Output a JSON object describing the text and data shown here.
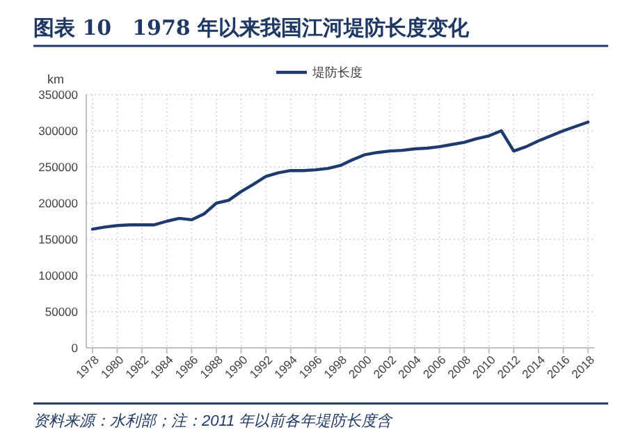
{
  "chart_data": {
    "type": "line",
    "title": "图表 10　1978 年以来我国江河堤防长度变化",
    "ylabel": "km",
    "x": [
      1978,
      1979,
      1980,
      1981,
      1982,
      1983,
      1984,
      1985,
      1986,
      1987,
      1988,
      1989,
      1990,
      1991,
      1992,
      1993,
      1994,
      1995,
      1996,
      1997,
      1998,
      1999,
      2000,
      2001,
      2002,
      2003,
      2004,
      2005,
      2006,
      2007,
      2008,
      2009,
      2010,
      2011,
      2012,
      2013,
      2014,
      2015,
      2016,
      2017,
      2018
    ],
    "series": [
      {
        "name": "堤防长度",
        "color": "#1f3a6e",
        "values": [
          164000,
          167000,
          169000,
          170000,
          170000,
          170000,
          175000,
          179000,
          177000,
          185000,
          200000,
          204000,
          216000,
          226000,
          237000,
          242000,
          245000,
          245000,
          246000,
          248000,
          252000,
          260000,
          267000,
          270000,
          272000,
          273000,
          275000,
          276000,
          278000,
          281000,
          284000,
          289000,
          293000,
          300000,
          272000,
          278000,
          286000,
          293000,
          300000,
          306000,
          312000
        ]
      }
    ],
    "xlim": [
      1977.5,
      2018.5
    ],
    "xticks": [
      1978,
      1980,
      1982,
      1984,
      1986,
      1988,
      1990,
      1992,
      1994,
      1996,
      1998,
      2000,
      2002,
      2004,
      2006,
      2008,
      2010,
      2012,
      2014,
      2016,
      2018
    ],
    "ylim": [
      0,
      350000
    ],
    "yticks": [
      0,
      50000,
      100000,
      150000,
      200000,
      250000,
      300000,
      350000
    ],
    "grid": true,
    "legend": "top",
    "line_style": "solid",
    "marker": "none",
    "annotations": [
      "资料来源：水利部；注：2011 年以前各年堤防长度含"
    ]
  }
}
